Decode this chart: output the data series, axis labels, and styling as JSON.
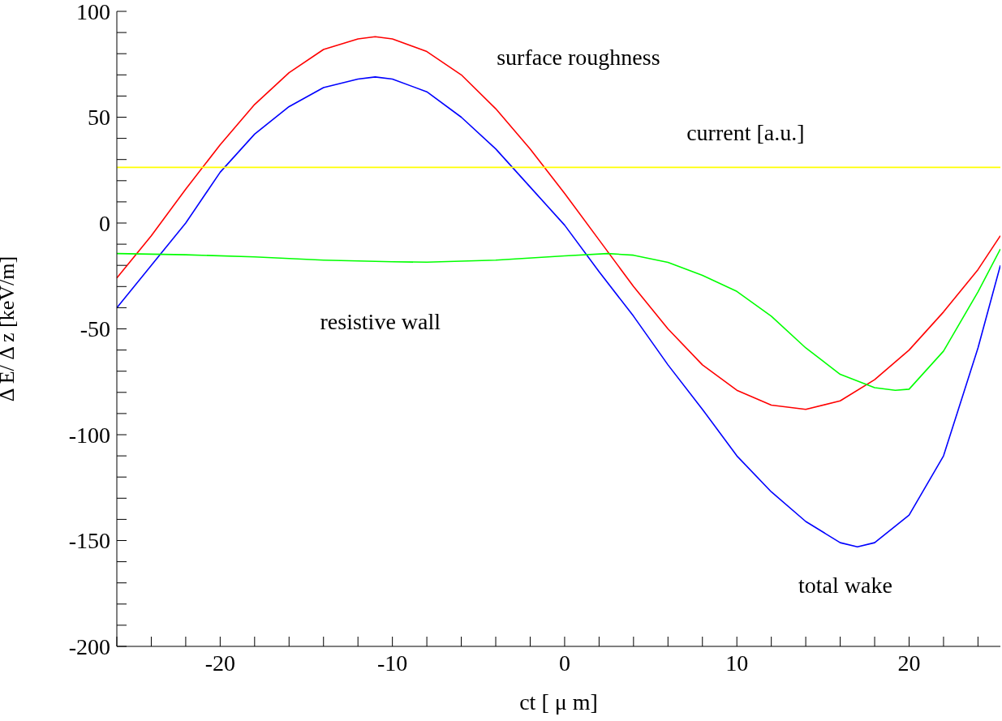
{
  "chart_data": {
    "type": "line",
    "xlabel": "ct [  μ m]",
    "ylabel": "Δ E/  Δ z [keV/m]",
    "xlim": [
      -26,
      25.3
    ],
    "ylim": [
      -200,
      100
    ],
    "xticks": [
      {
        "value": -26,
        "label": null
      },
      {
        "value": -24,
        "label": null
      },
      {
        "value": -22,
        "label": null
      },
      -20,
      {
        "value": -18,
        "label": null
      },
      {
        "value": -16,
        "label": null
      },
      {
        "value": -14,
        "label": null
      },
      {
        "value": -12,
        "label": null
      },
      -10,
      {
        "value": -8,
        "label": null
      },
      {
        "value": -6,
        "label": null
      },
      {
        "value": -4,
        "label": null
      },
      {
        "value": -2,
        "label": null
      },
      0,
      {
        "value": 2,
        "label": null
      },
      {
        "value": 4,
        "label": null
      },
      {
        "value": 6,
        "label": null
      },
      {
        "value": 8,
        "label": null
      },
      10,
      {
        "value": 12,
        "label": null
      },
      {
        "value": 14,
        "label": null
      },
      {
        "value": 16,
        "label": null
      },
      {
        "value": 18,
        "label": null
      },
      20,
      {
        "value": 22,
        "label": null
      },
      {
        "value": 24,
        "label": null
      }
    ],
    "yticks": [
      -200,
      {
        "value": -190,
        "label": null
      },
      {
        "value": -180,
        "label": null
      },
      {
        "value": -170,
        "label": null
      },
      {
        "value": -160,
        "label": null
      },
      -150,
      {
        "value": -140,
        "label": null
      },
      {
        "value": -130,
        "label": null
      },
      {
        "value": -120,
        "label": null
      },
      {
        "value": -110,
        "label": null
      },
      -100,
      {
        "value": -90,
        "label": null
      },
      {
        "value": -80,
        "label": null
      },
      {
        "value": -70,
        "label": null
      },
      {
        "value": -60,
        "label": null
      },
      -50,
      {
        "value": -40,
        "label": null
      },
      {
        "value": -30,
        "label": null
      },
      {
        "value": -20,
        "label": null
      },
      {
        "value": -10,
        "label": null
      },
      0,
      {
        "value": 10,
        "label": null
      },
      {
        "value": 20,
        "label": null
      },
      {
        "value": 30,
        "label": null
      },
      {
        "value": 40,
        "label": null
      },
      50,
      {
        "value": 60,
        "label": null
      },
      {
        "value": 70,
        "label": null
      },
      {
        "value": 80,
        "label": null
      },
      {
        "value": 90,
        "label": null
      },
      100
    ],
    "series": [
      {
        "name": "surface roughness",
        "color": "#ff0000",
        "x": [
          -26,
          -24,
          -22,
          -20,
          -18,
          -16,
          -14,
          -12,
          -11,
          -10,
          -8,
          -6,
          -4,
          -2,
          0,
          2,
          4,
          6,
          8,
          10,
          12,
          14,
          16,
          18,
          20,
          22,
          24,
          25.3
        ],
        "values": [
          -26,
          -6,
          16,
          37,
          56,
          71,
          82,
          87,
          88,
          87,
          81,
          70,
          54,
          35,
          14,
          -8,
          -30,
          -50,
          -67,
          -79,
          -86,
          -88,
          -84,
          -74,
          -60,
          -42,
          -22,
          -6
        ]
      },
      {
        "name": "total wake",
        "color": "#0000ff",
        "x": [
          -26,
          -24,
          -22,
          -20,
          -18,
          -16,
          -14,
          -12,
          -11,
          -10,
          -8,
          -6,
          -4,
          -2,
          0,
          2,
          4,
          6,
          8,
          10,
          12,
          14,
          16,
          17,
          18,
          20,
          22,
          24,
          25.3
        ],
        "values": [
          -40,
          -20,
          0,
          24,
          42,
          55,
          64,
          68,
          69,
          68,
          62,
          50,
          35,
          17,
          -1,
          -23,
          -44,
          -67,
          -88,
          -110,
          -127,
          -141,
          -151,
          -153,
          -151,
          -138,
          -110,
          -59,
          -20
        ]
      },
      {
        "name": "resistive wall",
        "color": "#00ff00",
        "x": [
          -26,
          -22,
          -18,
          -14,
          -10,
          -8,
          -4,
          0,
          2.5,
          4,
          6,
          8,
          10,
          12,
          14,
          16,
          18,
          19.2,
          20,
          22,
          24,
          25.3
        ],
        "values": [
          -14.4,
          -15,
          -16,
          -17.5,
          -18.3,
          -18.5,
          -17.5,
          -15.5,
          -14.4,
          -15.2,
          -18.6,
          -24.7,
          -32.3,
          -44,
          -59,
          -71.5,
          -77.8,
          -79,
          -78.5,
          -60.5,
          -32.5,
          -12.3
        ]
      },
      {
        "name": "current [a.u.]",
        "color": "#ffff00",
        "x": [
          -26,
          25.3
        ],
        "values": [
          26.3,
          26.3
        ]
      }
    ]
  }
}
